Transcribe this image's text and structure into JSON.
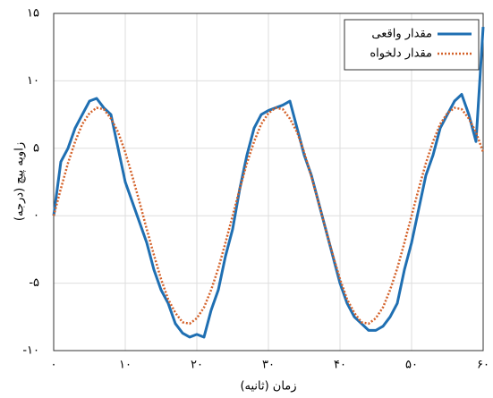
{
  "chart_data": {
    "type": "line",
    "x_label": "زمان (ثانیه)",
    "y_label": "زاویه پیچ (درجه)",
    "x": [
      0,
      1,
      2,
      3,
      4,
      5,
      6,
      7,
      8,
      9,
      10,
      11,
      12,
      13,
      14,
      15,
      16,
      17,
      18,
      19,
      20,
      21,
      22,
      23,
      24,
      25,
      26,
      27,
      28,
      29,
      30,
      31,
      32,
      33,
      34,
      35,
      36,
      37,
      38,
      39,
      40,
      41,
      42,
      43,
      44,
      45,
      46,
      47,
      48,
      49,
      50,
      51,
      52,
      53,
      54,
      55,
      56,
      57,
      58,
      59,
      60
    ],
    "series": [
      {
        "name": "مقدار واقعی",
        "color": "#1f6fb2",
        "style": "solid",
        "values": [
          0,
          4,
          5,
          6.5,
          7.5,
          8.5,
          8.7,
          8,
          7.5,
          5,
          2.5,
          1,
          -0.5,
          -2,
          -4,
          -5.5,
          -6.5,
          -8,
          -8.7,
          -9,
          -8.8,
          -9,
          -7,
          -5.5,
          -3,
          -1,
          2,
          4.5,
          6.5,
          7.5,
          7.8,
          8,
          8.2,
          8.5,
          6.5,
          4.5,
          3,
          1,
          -1,
          -3,
          -5,
          -6.5,
          -7.5,
          -8,
          -8.5,
          -8.5,
          -8.2,
          -7.5,
          -6.5,
          -4,
          -2,
          0.5,
          3,
          4.5,
          6.5,
          7.5,
          8.5,
          9,
          7.5,
          5.5,
          14
        ]
      },
      {
        "name": "مقدار دلخواه",
        "color": "#d4622a",
        "style": "dotted",
        "values": [
          0,
          2.0,
          3.9,
          5.5,
          6.8,
          7.6,
          8.0,
          7.9,
          7.2,
          6.2,
          4.7,
          2.9,
          1.0,
          -1.0,
          -2.9,
          -4.7,
          -6.2,
          -7.2,
          -7.9,
          -8.0,
          -7.6,
          -6.8,
          -5.5,
          -3.9,
          -2.0,
          0,
          2.0,
          3.9,
          5.5,
          6.8,
          7.6,
          8.0,
          7.9,
          7.2,
          6.2,
          4.7,
          2.9,
          1.0,
          -1.0,
          -2.9,
          -4.7,
          -6.2,
          -7.2,
          -7.9,
          -8.0,
          -7.6,
          -6.8,
          -5.5,
          -3.9,
          -2.0,
          0,
          2.0,
          3.9,
          5.5,
          6.8,
          7.6,
          8.0,
          7.9,
          7.2,
          6.2,
          4.7
        ]
      }
    ],
    "xlim": [
      0,
      60
    ],
    "ylim": [
      -10,
      15
    ],
    "xticks": [
      {
        "value": 0,
        "label": "۰"
      },
      {
        "value": 10,
        "label": "۱۰"
      },
      {
        "value": 20,
        "label": "۲۰"
      },
      {
        "value": 30,
        "label": "۳۰"
      },
      {
        "value": 40,
        "label": "۴۰"
      },
      {
        "value": 50,
        "label": "۵۰"
      },
      {
        "value": 60,
        "label": "۶۰"
      }
    ],
    "yticks": [
      {
        "value": -10,
        "label": "-۱۰"
      },
      {
        "value": -5,
        "label": "-۵"
      },
      {
        "value": 0,
        "label": "۰"
      },
      {
        "value": 5,
        "label": "۵"
      },
      {
        "value": 10,
        "label": "۱۰"
      },
      {
        "value": 15,
        "label": "۱۵"
      }
    ],
    "grid": true,
    "legend": "upper-right"
  }
}
